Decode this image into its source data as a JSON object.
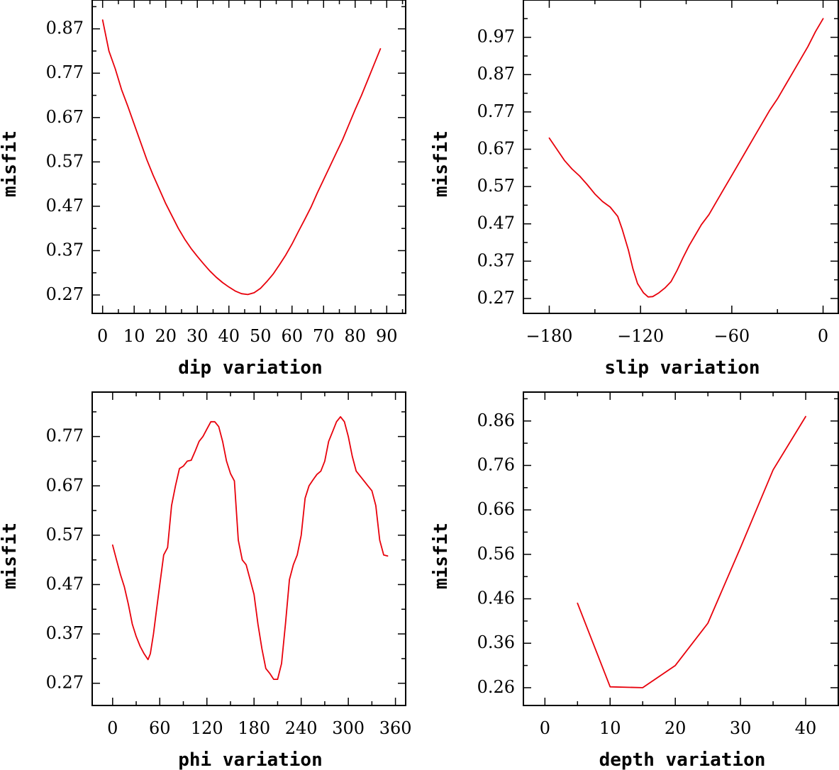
{
  "chart_data": [
    {
      "type": "line",
      "xlabel": "dip    variation",
      "ylabel": "misfit",
      "xlim": [
        -3.3,
        96
      ],
      "ylim": [
        0.2285,
        0.935
      ],
      "xticks": [
        0,
        10,
        20,
        30,
        40,
        50,
        60,
        70,
        80,
        90
      ],
      "xtick_labels": [
        "0",
        "10",
        "20",
        "30",
        "40",
        "50",
        "60",
        "70",
        "80",
        "90"
      ],
      "yticks": [
        0.27,
        0.37,
        0.47,
        0.57,
        0.67,
        0.77,
        0.87
      ],
      "ytick_labels": [
        "0.27",
        "0.37",
        "0.47",
        "0.57",
        "0.67",
        "0.77",
        "0.87"
      ],
      "series": [
        {
          "name": "misfit",
          "x": [
            0,
            2,
            4,
            6,
            8,
            10,
            12,
            14,
            16,
            18,
            20,
            22,
            24,
            26,
            28,
            30,
            32,
            34,
            36,
            38,
            40,
            42,
            44,
            46,
            48,
            50,
            52,
            54,
            56,
            58,
            60,
            62,
            64,
            66,
            68,
            70,
            72,
            74,
            76,
            78,
            80,
            82,
            84,
            86,
            88
          ],
          "y": [
            0.89,
            0.82,
            0.78,
            0.733,
            0.695,
            0.655,
            0.615,
            0.575,
            0.54,
            0.508,
            0.476,
            0.448,
            0.42,
            0.396,
            0.375,
            0.357,
            0.34,
            0.324,
            0.31,
            0.298,
            0.288,
            0.279,
            0.273,
            0.271,
            0.275,
            0.285,
            0.3,
            0.317,
            0.338,
            0.36,
            0.385,
            0.413,
            0.44,
            0.468,
            0.5,
            0.53,
            0.56,
            0.59,
            0.62,
            0.654,
            0.688,
            0.72,
            0.755,
            0.79,
            0.825
          ]
        }
      ]
    },
    {
      "type": "line",
      "xlabel": "slip   variation",
      "ylabel": "misfit",
      "xlim": [
        -197,
        10
      ],
      "ylim": [
        0.23,
        1.07
      ],
      "xticks": [
        -180,
        -120,
        -60,
        0
      ],
      "xtick_labels": [
        "−180",
        "−120",
        "−60",
        "0"
      ],
      "yticks": [
        0.27,
        0.37,
        0.47,
        0.57,
        0.67,
        0.77,
        0.87,
        0.97
      ],
      "ytick_labels": [
        "0.27",
        "0.37",
        "0.47",
        "0.57",
        "0.67",
        "0.77",
        "0.87",
        "0.97"
      ],
      "series": [
        {
          "name": "misfit",
          "x": [
            -180,
            -175,
            -170,
            -165,
            -160,
            -155,
            -150,
            -145,
            -140,
            -135,
            -132,
            -128,
            -125,
            -122,
            -118,
            -115,
            -112,
            -108,
            -104,
            -100,
            -96,
            -92,
            -88,
            -84,
            -80,
            -75,
            -70,
            -65,
            -60,
            -55,
            -50,
            -45,
            -40,
            -35,
            -30,
            -25,
            -20,
            -15,
            -10,
            -5,
            0
          ],
          "y": [
            0.7,
            0.67,
            0.64,
            0.617,
            0.598,
            0.575,
            0.55,
            0.53,
            0.515,
            0.49,
            0.455,
            0.4,
            0.35,
            0.31,
            0.285,
            0.274,
            0.275,
            0.285,
            0.298,
            0.315,
            0.345,
            0.38,
            0.412,
            0.44,
            0.468,
            0.495,
            0.53,
            0.565,
            0.6,
            0.635,
            0.67,
            0.705,
            0.74,
            0.775,
            0.805,
            0.84,
            0.875,
            0.91,
            0.945,
            0.985,
            1.02
          ]
        }
      ]
    },
    {
      "type": "line",
      "xlabel": "phi    variation",
      "ylabel": "misfit",
      "xlim": [
        -26,
        373
      ],
      "ylim": [
        0.225,
        0.86
      ],
      "xticks": [
        0,
        60,
        120,
        180,
        240,
        300,
        360
      ],
      "xtick_labels": [
        "0",
        "60",
        "120",
        "180",
        "240",
        "300",
        "360"
      ],
      "yticks": [
        0.27,
        0.37,
        0.47,
        0.57,
        0.67,
        0.77
      ],
      "ytick_labels": [
        "0.27",
        "0.37",
        "0.47",
        "0.57",
        "0.67",
        "0.77"
      ],
      "series": [
        {
          "name": "misfit",
          "x": [
            0,
            5,
            10,
            15,
            20,
            25,
            30,
            35,
            40,
            45,
            48,
            52,
            56,
            60,
            65,
            70,
            75,
            80,
            85,
            90,
            95,
            100,
            105,
            110,
            115,
            120,
            125,
            130,
            135,
            140,
            145,
            150,
            155,
            160,
            165,
            170,
            175,
            180,
            185,
            190,
            195,
            200,
            205,
            210,
            215,
            220,
            225,
            230,
            235,
            240,
            245,
            250,
            255,
            260,
            265,
            270,
            275,
            280,
            285,
            290,
            295,
            300,
            305,
            310,
            315,
            320,
            325,
            330,
            335,
            340,
            345,
            350
          ],
          "y": [
            0.55,
            0.52,
            0.49,
            0.465,
            0.43,
            0.39,
            0.365,
            0.345,
            0.33,
            0.318,
            0.33,
            0.37,
            0.42,
            0.47,
            0.53,
            0.545,
            0.63,
            0.67,
            0.705,
            0.71,
            0.72,
            0.722,
            0.74,
            0.76,
            0.77,
            0.785,
            0.8,
            0.8,
            0.79,
            0.76,
            0.72,
            0.695,
            0.68,
            0.56,
            0.52,
            0.51,
            0.48,
            0.45,
            0.39,
            0.34,
            0.3,
            0.29,
            0.278,
            0.278,
            0.31,
            0.39,
            0.48,
            0.51,
            0.53,
            0.57,
            0.645,
            0.67,
            0.682,
            0.693,
            0.7,
            0.72,
            0.76,
            0.78,
            0.8,
            0.81,
            0.8,
            0.77,
            0.73,
            0.7,
            0.69,
            0.68,
            0.67,
            0.66,
            0.63,
            0.56,
            0.53,
            0.528
          ]
        }
      ]
    },
    {
      "type": "line",
      "xlabel": "depth  variation",
      "ylabel": "misfit",
      "xlim": [
        -3.3,
        45
      ],
      "ylim": [
        0.22,
        0.925
      ],
      "xticks": [
        0,
        10,
        20,
        30,
        40
      ],
      "xtick_labels": [
        "0",
        "10",
        "20",
        "30",
        "40"
      ],
      "yticks": [
        0.26,
        0.36,
        0.46,
        0.56,
        0.66,
        0.76,
        0.86
      ],
      "ytick_labels": [
        "0.26",
        "0.36",
        "0.46",
        "0.56",
        "0.66",
        "0.76",
        "0.86"
      ],
      "series": [
        {
          "name": "misfit",
          "x": [
            5,
            10,
            15,
            20,
            25,
            30,
            35,
            40
          ],
          "y": [
            0.45,
            0.262,
            0.26,
            0.31,
            0.405,
            0.575,
            0.75,
            0.87
          ]
        }
      ]
    }
  ]
}
